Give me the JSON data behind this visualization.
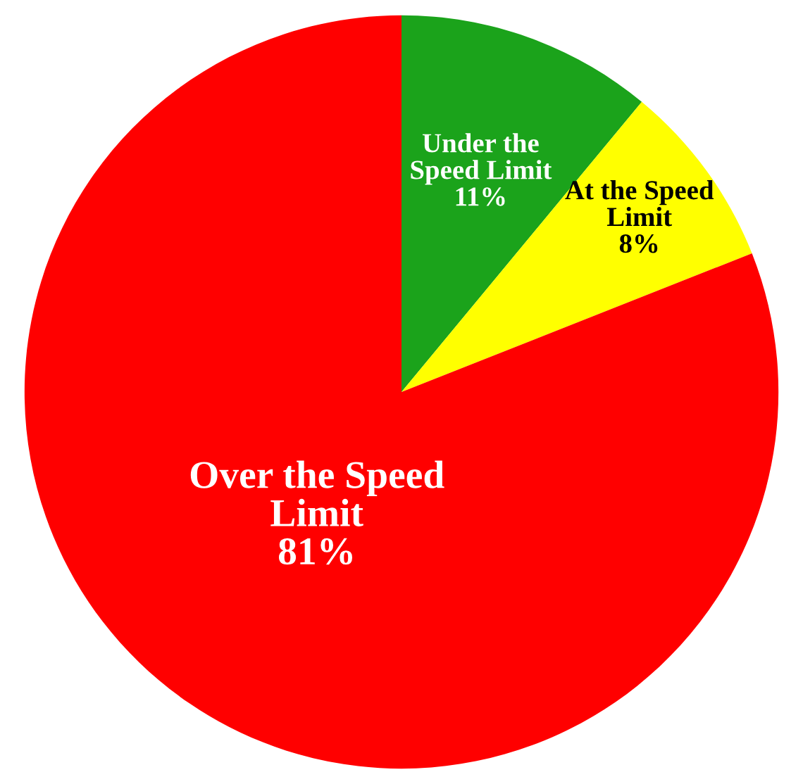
{
  "chart_data": {
    "type": "pie",
    "categories": [
      "Under the\nSpeed Limit",
      "At the Speed\nLimit",
      "Over the Speed\nLimit"
    ],
    "values": [
      11,
      8,
      81
    ],
    "value_labels": [
      "11%",
      "8%",
      "81%"
    ],
    "colors": [
      "#1ba31b",
      "#ffff00",
      "#ff0000"
    ]
  }
}
